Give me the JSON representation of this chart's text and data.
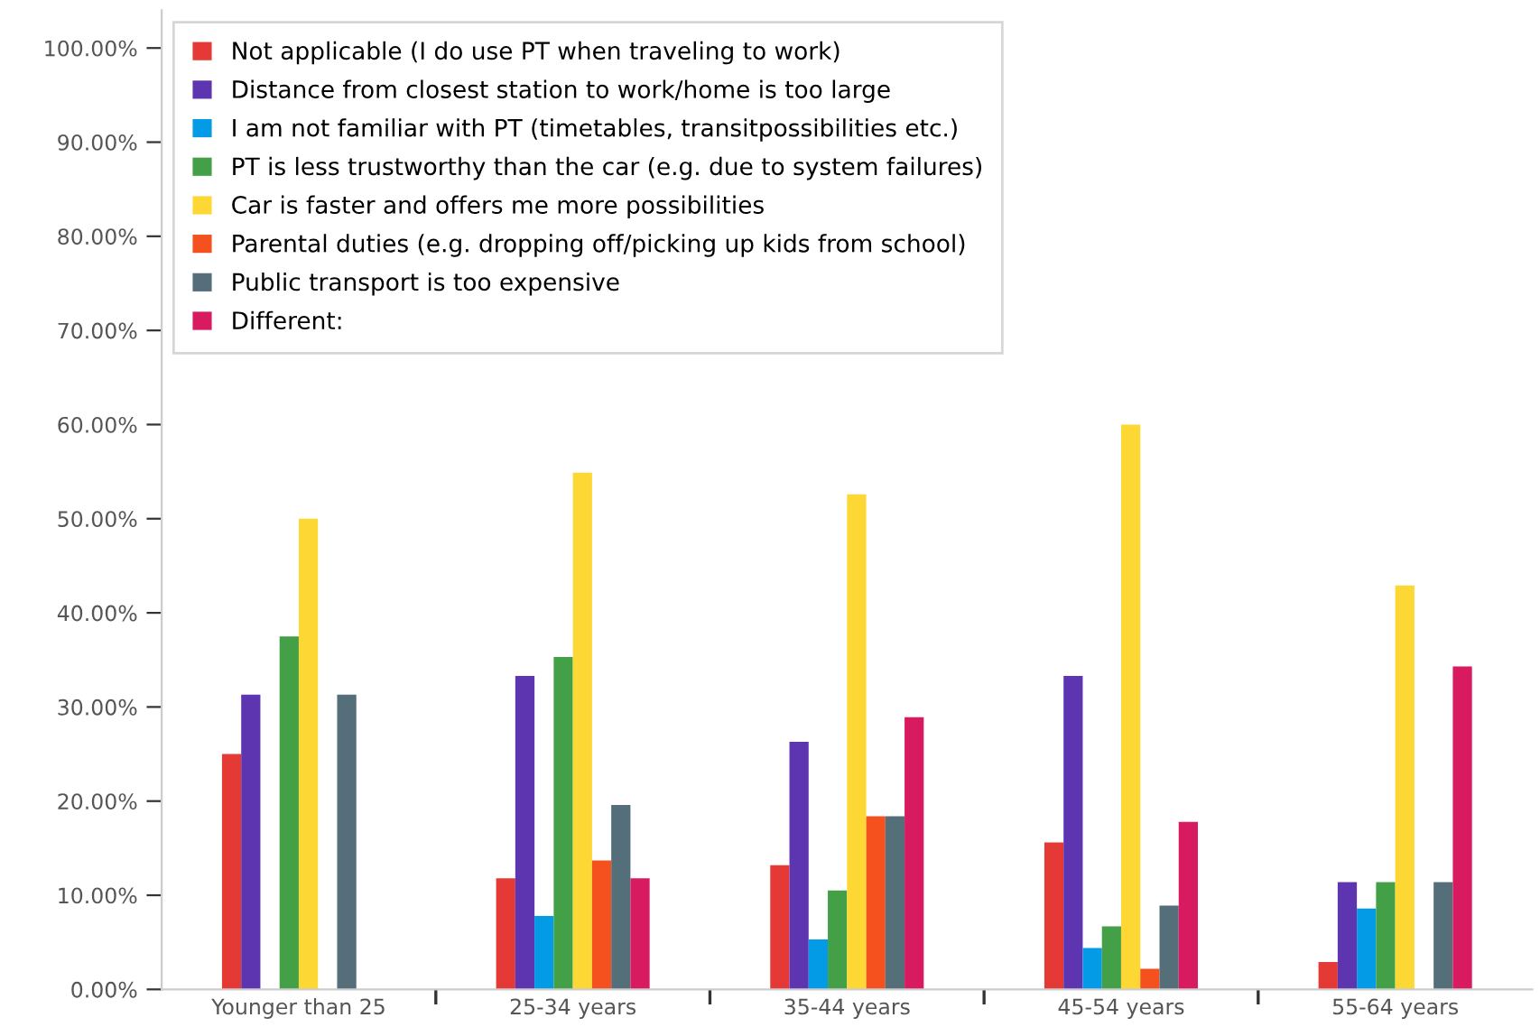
{
  "chart_data": {
    "type": "bar",
    "categories": [
      "Younger than 25",
      "25-34 years",
      "35-44 years",
      "45-54 years",
      "55-64 years"
    ],
    "series": [
      {
        "name": "Not applicable (I do use PT when traveling to work)",
        "color": "#e53935",
        "values": [
          25.0,
          11.8,
          13.2,
          15.6,
          2.9
        ]
      },
      {
        "name": "Distance from closest station to work/home is too large",
        "color": "#5e35b1",
        "values": [
          31.3,
          33.3,
          26.3,
          33.3,
          11.4
        ]
      },
      {
        "name": "I am not familiar with PT (timetables, transitpossibilities etc.)",
        "color": "#039be5",
        "values": [
          0,
          7.8,
          5.3,
          4.4,
          8.6
        ]
      },
      {
        "name": "PT is less trustworthy than the car (e.g. due to system failures)",
        "color": "#43a047",
        "values": [
          37.5,
          35.3,
          10.5,
          6.7,
          11.4
        ]
      },
      {
        "name": "Car is faster and offers me more possibilities",
        "color": "#fdd835",
        "values": [
          50.0,
          54.9,
          52.6,
          60.0,
          42.9
        ]
      },
      {
        "name": "Parental duties (e.g. dropping off/picking up kids from school)",
        "color": "#f4511e",
        "values": [
          0,
          13.7,
          18.4,
          2.2,
          0
        ]
      },
      {
        "name": "Public transport is too expensive",
        "color": "#546e7a",
        "values": [
          31.3,
          19.6,
          18.4,
          8.9,
          11.4
        ]
      },
      {
        "name": "Different:",
        "color": "#d81b60",
        "values": [
          0,
          11.8,
          28.9,
          17.8,
          34.3
        ]
      }
    ],
    "ylim": [
      0,
      104
    ],
    "yticks": [
      {
        "value": 0,
        "label": "0.00%"
      },
      {
        "value": 10,
        "label": "10.00%"
      },
      {
        "value": 20,
        "label": "20.00%"
      },
      {
        "value": 30,
        "label": "30.00%"
      },
      {
        "value": 40,
        "label": "40.00%"
      },
      {
        "value": 50,
        "label": "50.00%"
      },
      {
        "value": 60,
        "label": "60.00%"
      },
      {
        "value": 70,
        "label": "70.00%"
      },
      {
        "value": 80,
        "label": "80.00%"
      },
      {
        "value": 90,
        "label": "90.00%"
      },
      {
        "value": 100,
        "label": "100.00%"
      }
    ],
    "legend": "top left",
    "grid": false
  }
}
